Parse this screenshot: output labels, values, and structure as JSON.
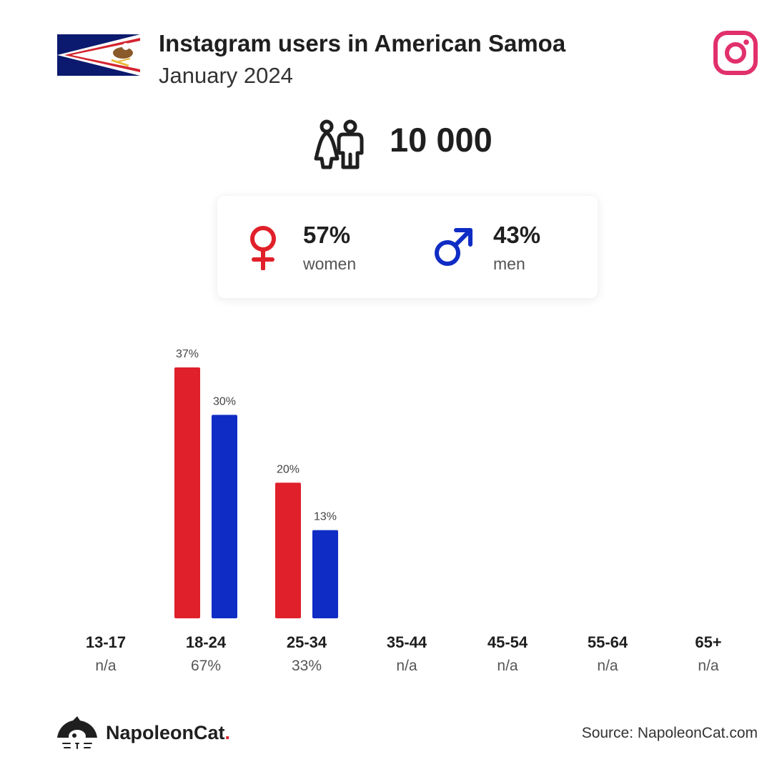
{
  "header": {
    "title": "Instagram users in American Samoa",
    "subtitle": "January 2024"
  },
  "total_users": "10 000",
  "gender": {
    "women": {
      "pct": "57%",
      "label": "women"
    },
    "men": {
      "pct": "43%",
      "label": "men"
    }
  },
  "footer": {
    "brand": "NapoleonCat",
    "brand_dot": ".",
    "source": "Source: NapoleonCat.com"
  },
  "colors": {
    "women": "#e0202a",
    "men": "#0f2cc4",
    "instagram": "#e1306c"
  },
  "chart_data": {
    "type": "bar",
    "categories": [
      "13-17",
      "18-24",
      "25-34",
      "35-44",
      "45-54",
      "55-64",
      "65+"
    ],
    "category_totals": [
      "n/a",
      "67%",
      "33%",
      "n/a",
      "n/a",
      "n/a",
      "n/a"
    ],
    "series": [
      {
        "values": [
          null,
          37,
          20,
          null,
          null,
          null,
          null
        ],
        "labels": [
          "",
          "37%",
          "20%",
          "",
          "",
          "",
          ""
        ],
        "color": "#e0202a"
      },
      {
        "values": [
          null,
          30,
          13,
          null,
          null,
          null,
          null
        ],
        "labels": [
          "",
          "30%",
          "13%",
          "",
          "",
          "",
          ""
        ],
        "color": "#0f2cc4"
      }
    ],
    "ylim": [
      0,
      37
    ],
    "grid": false
  }
}
